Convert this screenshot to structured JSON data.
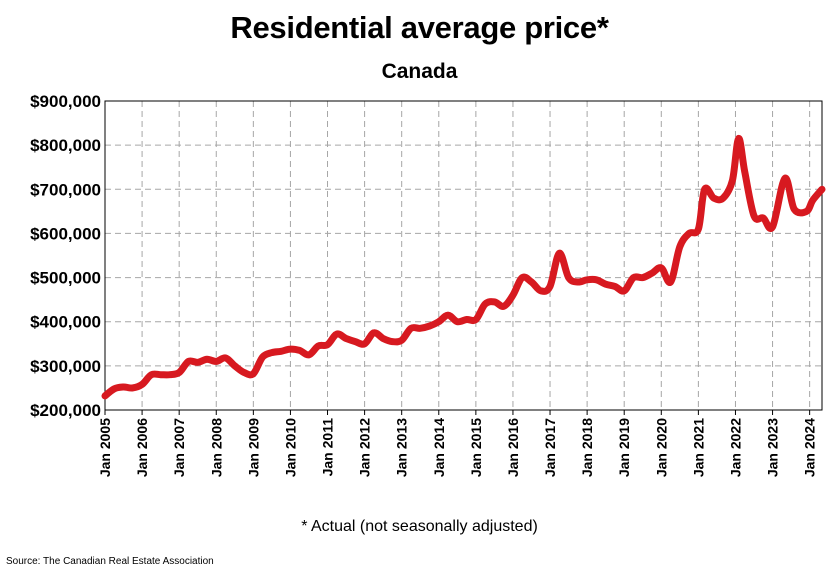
{
  "title": "Residential average price*",
  "subtitle": "Canada",
  "footnote": "* Actual (not seasonally adjusted)",
  "source": "Source: The Canadian Real Estate Association",
  "colors": {
    "line": "#d71920",
    "grid": "#a6a6a6",
    "axis": "#000000"
  },
  "chart_data": {
    "type": "line",
    "title": "Residential average price*",
    "subtitle": "Canada",
    "xlabel": "",
    "ylabel": "",
    "ylim": [
      200000,
      900000
    ],
    "yticks": [
      200000,
      300000,
      400000,
      500000,
      600000,
      700000,
      800000,
      900000
    ],
    "ytick_labels": [
      "$200,000",
      "$300,000",
      "$400,000",
      "$500,000",
      "$600,000",
      "$700,000",
      "$800,000",
      "$900,000"
    ],
    "xlim": [
      "2005-01",
      "2024-05"
    ],
    "xtick_labels": [
      "Jan 2005",
      "Jan 2006",
      "Jan 2007",
      "Jan 2008",
      "Jan 2009",
      "Jan 2010",
      "Jan 2011",
      "Jan 2012",
      "Jan 2013",
      "Jan 2014",
      "Jan 2015",
      "Jan 2016",
      "Jan 2017",
      "Jan 2018",
      "Jan 2019",
      "Jan 2020",
      "Jan 2021",
      "Jan 2022",
      "Jan 2023",
      "Jan 2024"
    ],
    "grid": true,
    "legend": "none",
    "series": [
      {
        "x": [
          "2005-01",
          "2005-04",
          "2005-07",
          "2005-10",
          "2006-01",
          "2006-04",
          "2006-07",
          "2006-10",
          "2007-01",
          "2007-04",
          "2007-07",
          "2007-10",
          "2008-01",
          "2008-04",
          "2008-07",
          "2008-10",
          "2009-01",
          "2009-04",
          "2009-07",
          "2009-10",
          "2010-01",
          "2010-04",
          "2010-07",
          "2010-10",
          "2011-01",
          "2011-04",
          "2011-07",
          "2011-10",
          "2012-01",
          "2012-04",
          "2012-07",
          "2012-10",
          "2013-01",
          "2013-04",
          "2013-07",
          "2013-10",
          "2014-01",
          "2014-04",
          "2014-07",
          "2014-10",
          "2015-01",
          "2015-04",
          "2015-07",
          "2015-10",
          "2016-01",
          "2016-04",
          "2016-07",
          "2016-10",
          "2017-01",
          "2017-04",
          "2017-07",
          "2017-10",
          "2018-01",
          "2018-04",
          "2018-07",
          "2018-10",
          "2019-01",
          "2019-04",
          "2019-07",
          "2019-10",
          "2020-01",
          "2020-04",
          "2020-07",
          "2020-10",
          "2021-01",
          "2021-03",
          "2021-06",
          "2021-09",
          "2021-12",
          "2022-02",
          "2022-04",
          "2022-07",
          "2022-10",
          "2023-01",
          "2023-05",
          "2023-08",
          "2023-12",
          "2024-02",
          "2024-05"
        ],
        "y": [
          232000,
          248000,
          252000,
          250000,
          258000,
          280000,
          280000,
          280000,
          285000,
          310000,
          308000,
          315000,
          310000,
          318000,
          300000,
          285000,
          282000,
          320000,
          330000,
          333000,
          338000,
          335000,
          325000,
          345000,
          348000,
          372000,
          362000,
          355000,
          350000,
          375000,
          362000,
          355000,
          358000,
          385000,
          385000,
          390000,
          400000,
          415000,
          400000,
          405000,
          405000,
          440000,
          445000,
          435000,
          460000,
          500000,
          490000,
          470000,
          480000,
          555000,
          500000,
          490000,
          495000,
          495000,
          485000,
          480000,
          470000,
          500000,
          500000,
          510000,
          522000,
          490000,
          570000,
          600000,
          610000,
          700000,
          680000,
          680000,
          720000,
          815000,
          740000,
          640000,
          635000,
          615000,
          725000,
          655000,
          650000,
          675000,
          700000
        ]
      }
    ]
  }
}
